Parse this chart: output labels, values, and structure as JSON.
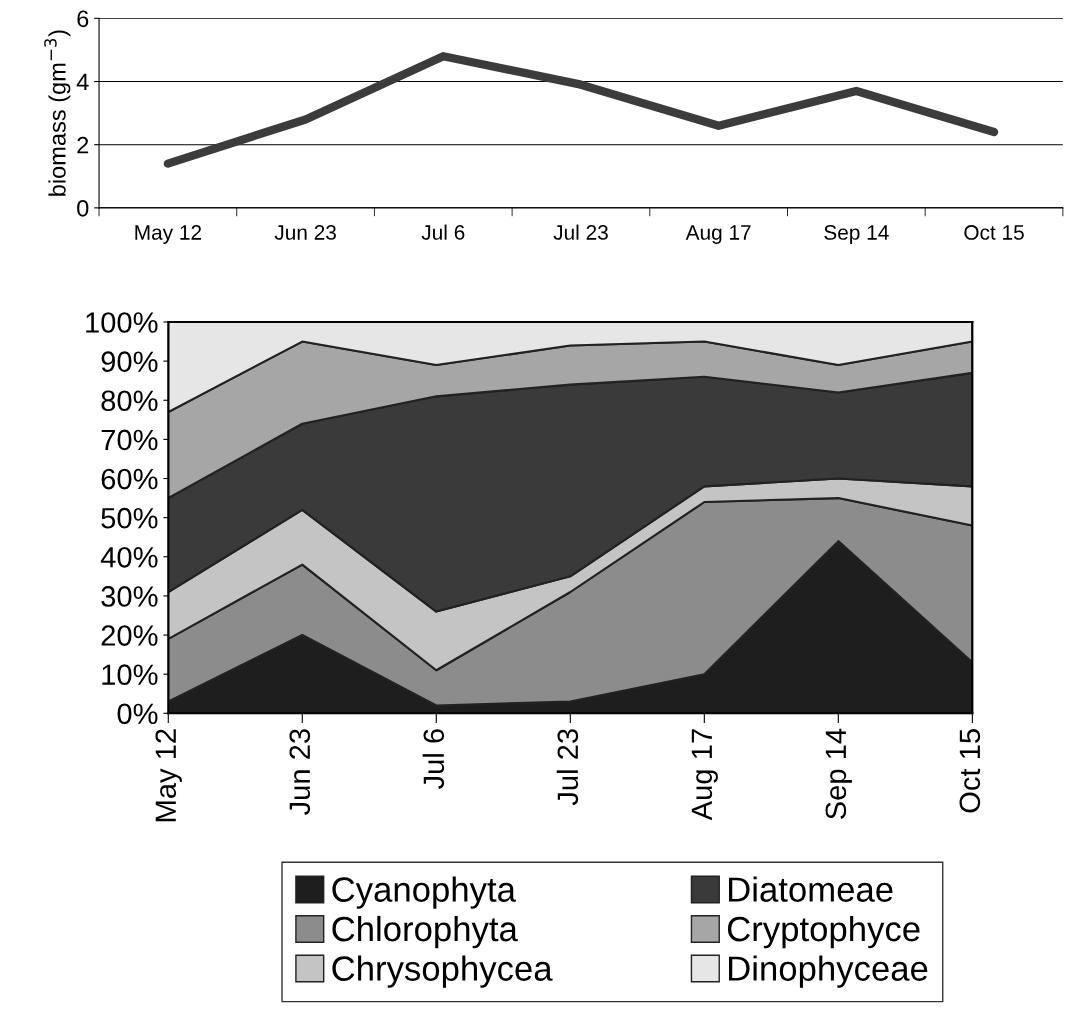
{
  "chart_data": [
    {
      "type": "line",
      "ylabel": "biomass (gm$^{−3}$)",
      "categories": [
        "May 12",
        "Jun 23",
        "Jul 6",
        "Jul 23",
        "Aug 17",
        "Sep 14",
        "Oct 15"
      ],
      "series": [
        {
          "color": "#3c3c3c",
          "values": [
            1.4,
            2.8,
            4.8,
            3.9,
            2.6,
            3.7,
            2.4
          ]
        }
      ],
      "ylim": [
        0,
        6
      ],
      "yticks": [
        0,
        2,
        4,
        6
      ],
      "grid": "y",
      "legend": false
    },
    {
      "type": "area",
      "stacked": true,
      "categories": [
        "May 12",
        "Jun 23",
        "Jul 6",
        "Jul 23",
        "Aug 17",
        "Sep 14",
        "Oct 15"
      ],
      "series": [
        {
          "name": "Cyanophyta",
          "color": "#1e1e1e",
          "values": [
            3,
            20,
            2,
            3,
            10,
            44,
            13
          ]
        },
        {
          "name": "Chlorophyta",
          "color": "#8c8c8c",
          "values": [
            16,
            18,
            9,
            28,
            44,
            11,
            35
          ]
        },
        {
          "name": "Chrysophycea",
          "color": "#c4c4c4",
          "values": [
            12,
            14,
            15,
            4,
            4,
            5,
            10
          ]
        },
        {
          "name": "Diatomeae",
          "color": "#3a3a3a",
          "values": [
            24,
            22,
            55,
            49,
            28,
            22,
            29
          ]
        },
        {
          "name": "Cryptophyce",
          "color": "#a6a6a6",
          "values": [
            22,
            21,
            8,
            10,
            9,
            7,
            8
          ]
        },
        {
          "name": "Dinophyceae",
          "color": "#e6e6e6",
          "values": [
            23,
            5,
            11,
            6,
            5,
            11,
            5
          ]
        }
      ],
      "ylim": [
        0,
        100
      ],
      "yticks": [
        {
          "value": 0,
          "label": "0%"
        },
        {
          "value": 10,
          "label": "10%"
        },
        {
          "value": 20,
          "label": "20%"
        },
        {
          "value": 30,
          "label": "30%"
        },
        {
          "value": 40,
          "label": "40%"
        },
        {
          "value": 50,
          "label": "50%"
        },
        {
          "value": 60,
          "label": "60%"
        },
        {
          "value": 70,
          "label": "70%"
        },
        {
          "value": 80,
          "label": "80%"
        },
        {
          "value": 90,
          "label": "90%"
        },
        {
          "value": 100,
          "label": "100%"
        }
      ],
      "grid": false,
      "legend": "bottom"
    }
  ]
}
